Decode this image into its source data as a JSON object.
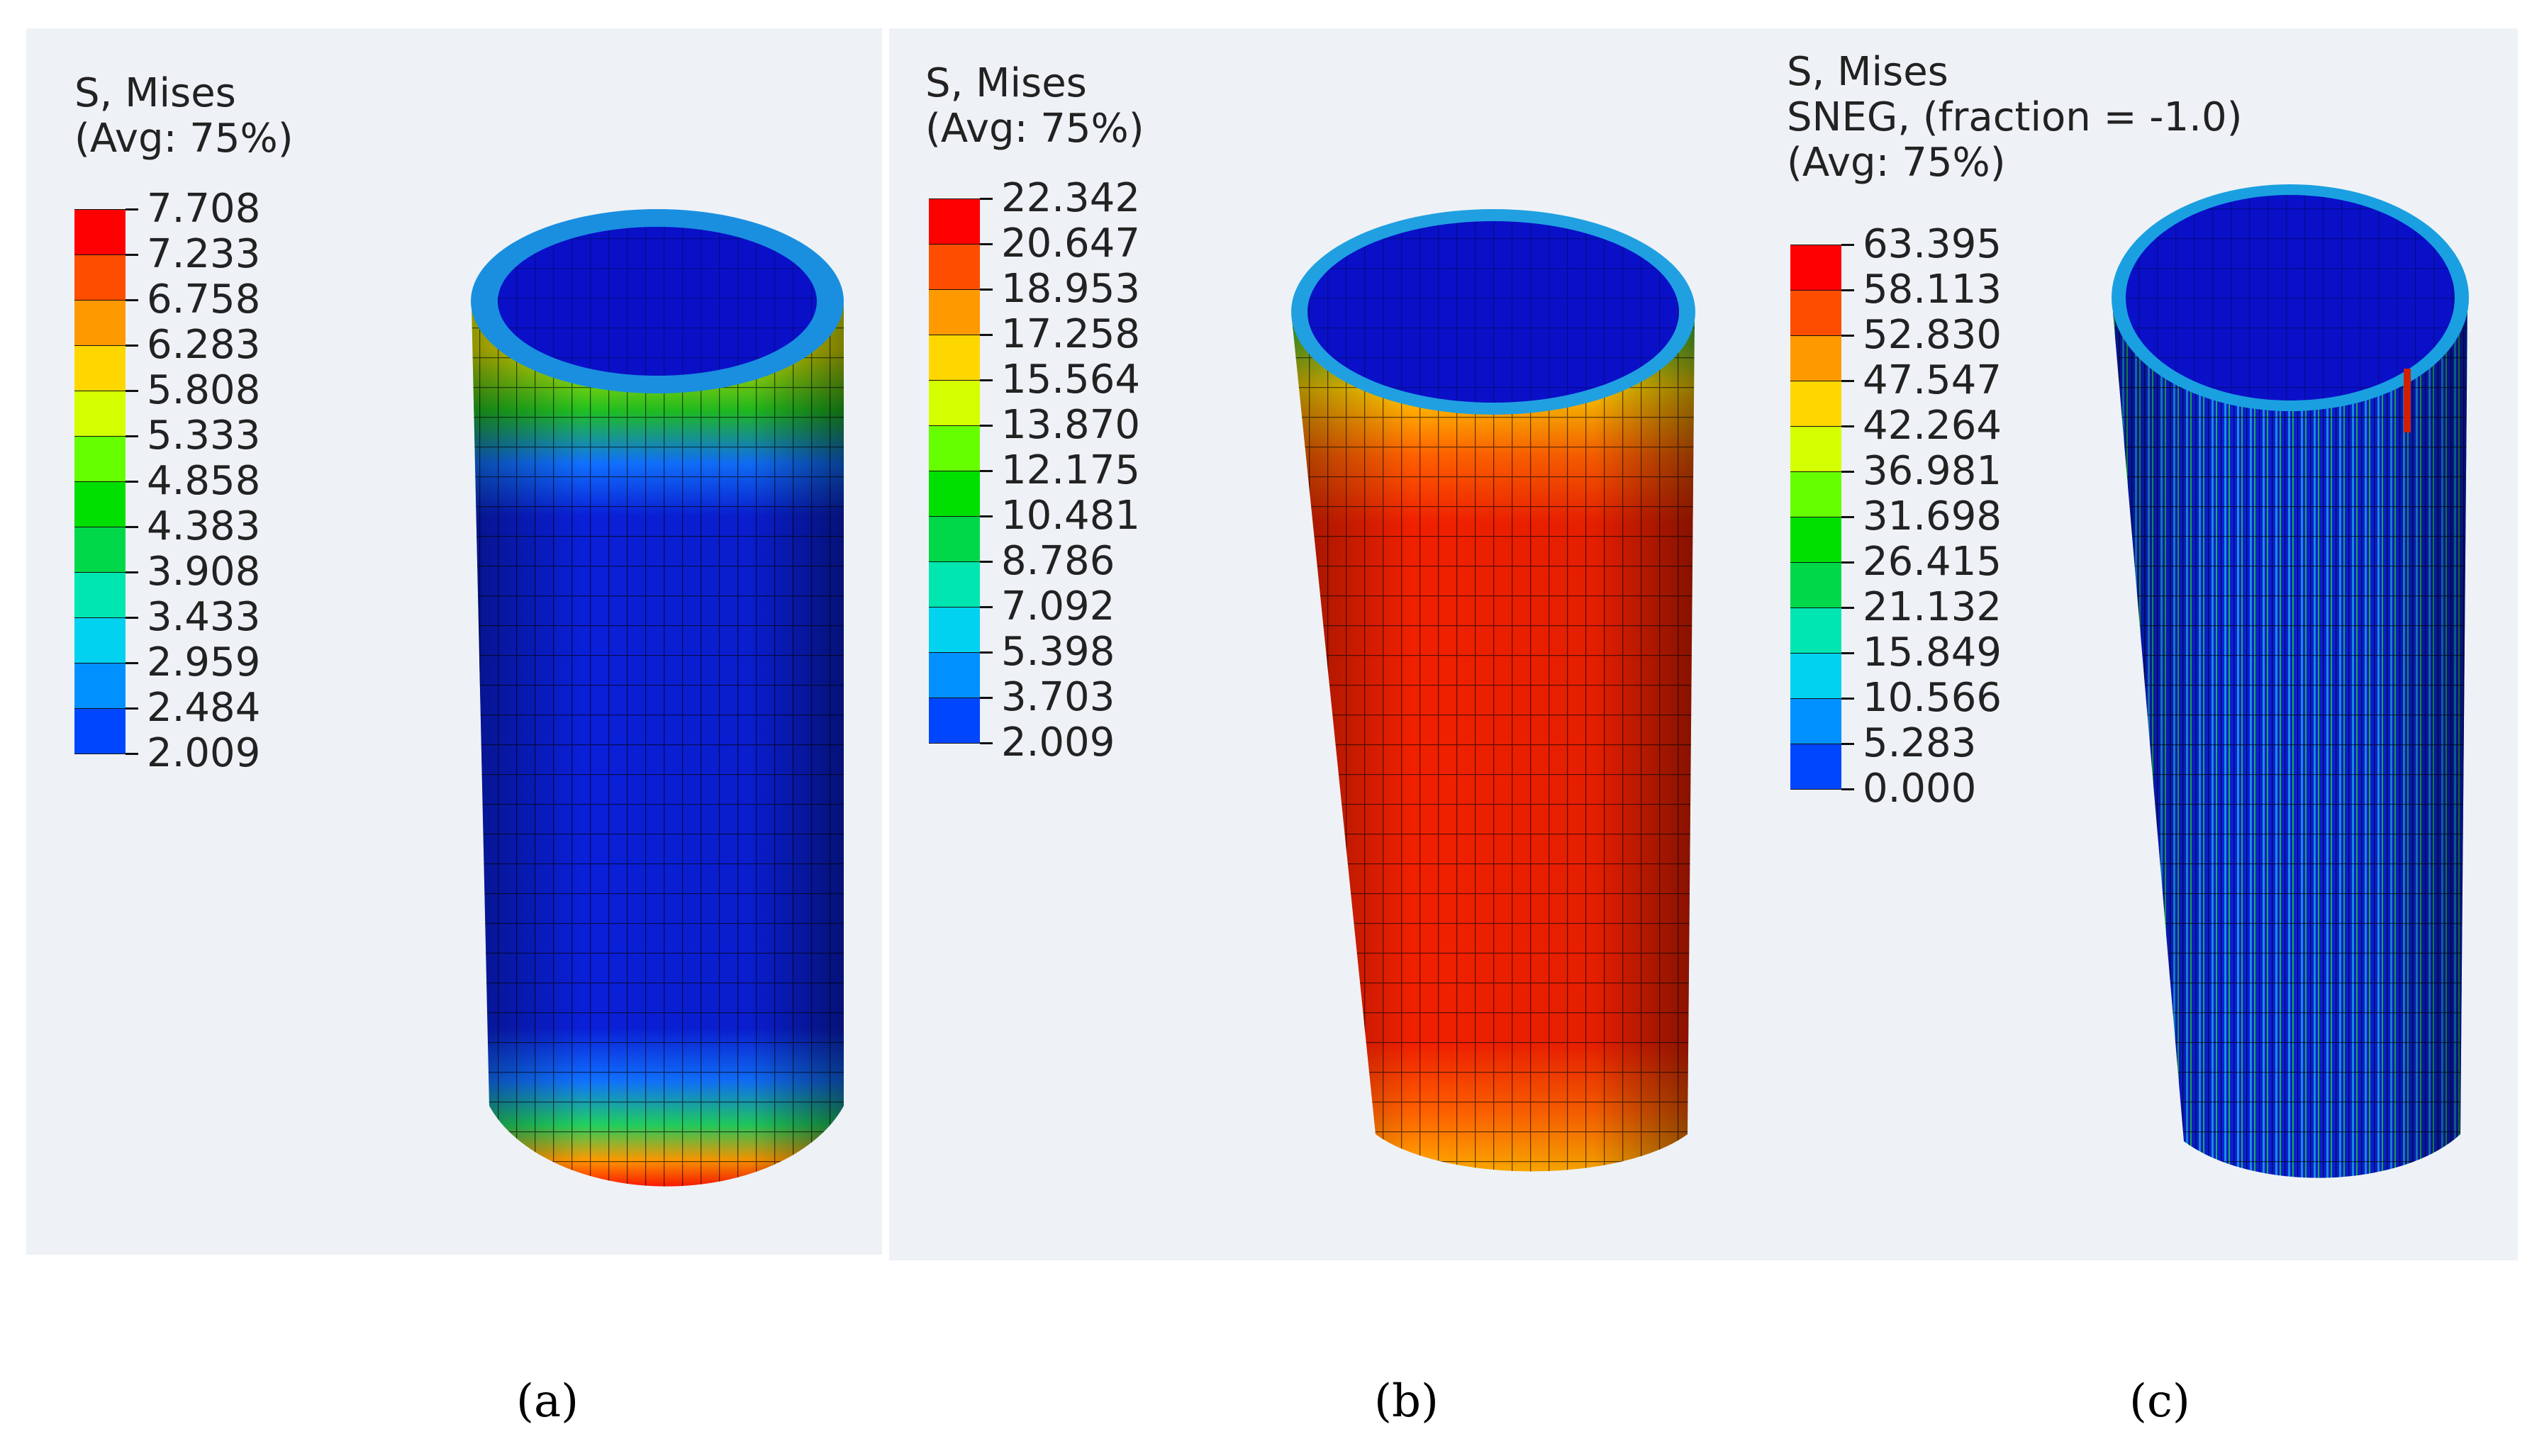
{
  "panels": [
    {
      "id": "a",
      "caption": "(a)",
      "legend": {
        "lines": [
          "S, Mises",
          "(Avg: 75%)"
        ],
        "values": [
          "7.708",
          "7.233",
          "6.758",
          "6.283",
          "5.808",
          "5.333",
          "4.858",
          "4.383",
          "3.908",
          "3.433",
          "2.959",
          "2.484",
          "2.009"
        ]
      }
    },
    {
      "id": "b",
      "caption": "(b)",
      "legend": {
        "lines": [
          "S, Mises",
          "(Avg: 75%)"
        ],
        "values": [
          "22.342",
          "20.647",
          "18.953",
          "17.258",
          "15.564",
          "13.870",
          "12.175",
          "10.481",
          "8.786",
          "7.092",
          "5.398",
          "3.703",
          "2.009"
        ]
      }
    },
    {
      "id": "c",
      "caption": "(c)",
      "legend": {
        "lines": [
          "S, Mises",
          "SNEG, (fraction = -1.0)",
          "(Avg: 75%)"
        ],
        "values": [
          "63.395",
          "58.113",
          "52.830",
          "47.547",
          "42.264",
          "36.981",
          "31.698",
          "26.415",
          "21.132",
          "15.849",
          "10.566",
          "5.283",
          "0.000"
        ]
      }
    }
  ],
  "colormap": [
    "#ff0000",
    "#ff4d00",
    "#ff9900",
    "#ffd700",
    "#d4ff00",
    "#66ff00",
    "#00e000",
    "#00d84a",
    "#00e6b0",
    "#00d2f0",
    "#0090ff",
    "#0046ff",
    "#0000e0"
  ]
}
